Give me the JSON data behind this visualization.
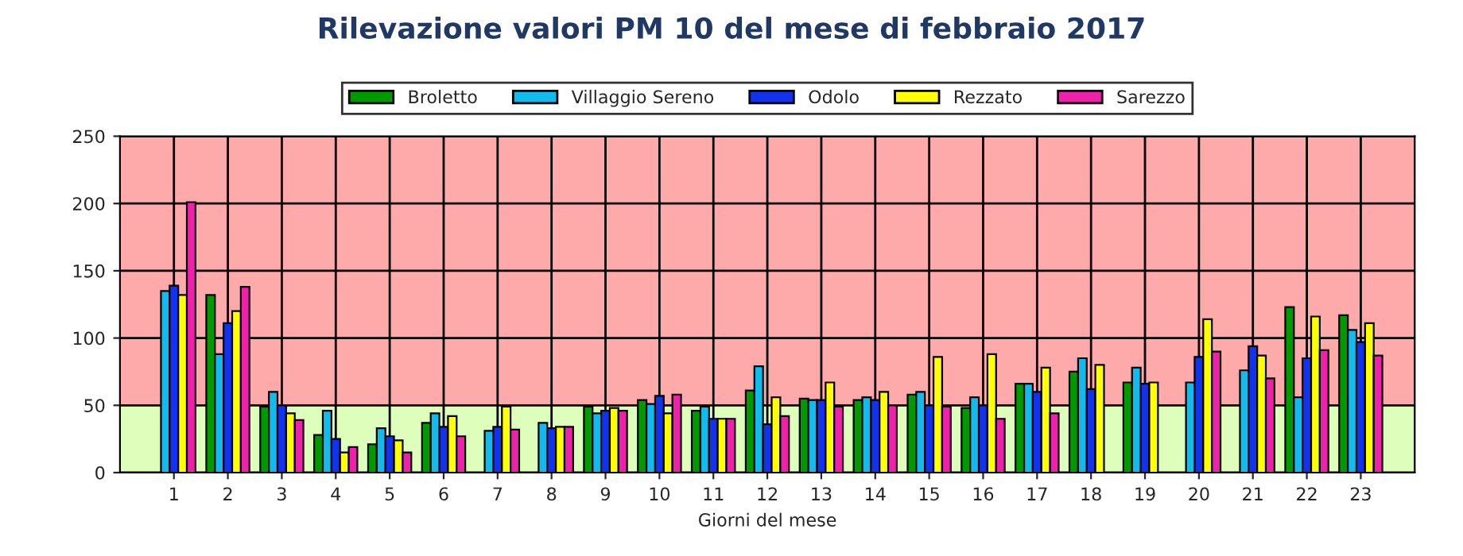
{
  "chart_data": {
    "type": "bar",
    "title": "Rilevazione valori PM 10 del mese di febbraio 2017",
    "xlabel": "Giorni del mese",
    "categories": [
      "1",
      "2",
      "3",
      "4",
      "5",
      "6",
      "7",
      "8",
      "9",
      "10",
      "11",
      "12",
      "13",
      "14",
      "15",
      "16",
      "17",
      "18",
      "19",
      "20",
      "21",
      "22",
      "23"
    ],
    "series": [
      {
        "name": "Broletto",
        "color": "#009900",
        "values": [
          null,
          132,
          49,
          28,
          21,
          37,
          null,
          null,
          49,
          54,
          46,
          61,
          55,
          54,
          58,
          48,
          66,
          75,
          67,
          null,
          null,
          123,
          117
        ]
      },
      {
        "name": "Villaggio Sereno",
        "color": "#11bbee",
        "values": [
          135,
          88,
          60,
          46,
          33,
          44,
          31,
          37,
          44,
          51,
          49,
          79,
          54,
          56,
          60,
          56,
          66,
          85,
          78,
          67,
          76,
          56,
          106
        ]
      },
      {
        "name": "Odolo",
        "color": "#1133ee",
        "values": [
          139,
          111,
          50,
          25,
          27,
          34,
          34,
          33,
          46,
          57,
          40,
          36,
          54,
          54,
          50,
          50,
          60,
          62,
          66,
          86,
          94,
          85,
          97
        ]
      },
      {
        "name": "Rezzato",
        "color": "#ffff00",
        "values": [
          132,
          120,
          44,
          15,
          24,
          42,
          49,
          34,
          48,
          44,
          40,
          56,
          67,
          60,
          86,
          88,
          78,
          80,
          67,
          114,
          87,
          116,
          111
        ]
      },
      {
        "name": "Sarezzo",
        "color": "#ee22aa",
        "values": [
          201,
          138,
          39,
          19,
          15,
          27,
          32,
          34,
          46,
          58,
          40,
          42,
          49,
          50,
          49,
          40,
          44,
          null,
          null,
          90,
          70,
          91,
          87
        ]
      }
    ],
    "ylim": [
      0,
      250
    ],
    "yticks": [
      0,
      50,
      100,
      150,
      200,
      250
    ],
    "bands": [
      {
        "axis": "y",
        "from": 0,
        "to": 50,
        "color": "#ddffbb"
      },
      {
        "axis": "y",
        "from": 50,
        "to": 250,
        "color": "#ffaaaa"
      }
    ],
    "grid": true,
    "legend": "top"
  }
}
